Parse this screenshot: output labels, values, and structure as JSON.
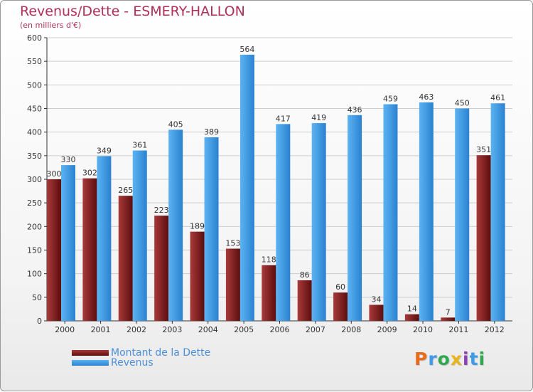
{
  "colors": {
    "dette": "#8b1a1a",
    "revenus": "#3d9be9",
    "title": "#b0305a",
    "axis": "#333333",
    "grid": "#cccccc"
  },
  "logo": {
    "text": "Proxiti",
    "letters": [
      "P",
      "r",
      "o",
      "x",
      "i",
      "t",
      "i"
    ],
    "letter_colors": [
      "#e86a1a",
      "#3d9be9",
      "#2fa84f",
      "#e8b41a",
      "#8a3fb5",
      "#3d9be9",
      "#2fa84f"
    ]
  },
  "chart_data": {
    "type": "bar",
    "title": "Revenus/Dette - ESMERY-HALLON",
    "subtitle": "(en milliers d'€)",
    "xlabel": "",
    "ylabel": "",
    "ylim": [
      0,
      600
    ],
    "yticks": [
      0,
      50,
      100,
      150,
      200,
      250,
      300,
      350,
      400,
      450,
      500,
      550,
      600
    ],
    "categories": [
      "2000",
      "2001",
      "2002",
      "2003",
      "2004",
      "2005",
      "2006",
      "2007",
      "2008",
      "2009",
      "2010",
      "2011",
      "2012"
    ],
    "series": [
      {
        "name": "Montant de la Dette",
        "values": [
          300,
          302,
          265,
          223,
          189,
          153,
          118,
          86,
          60,
          34,
          14,
          7,
          351
        ]
      },
      {
        "name": "Revenus",
        "values": [
          330,
          349,
          361,
          405,
          389,
          564,
          417,
          419,
          436,
          459,
          463,
          450,
          461
        ]
      }
    ],
    "grid": true,
    "legend": "bottom-left"
  }
}
